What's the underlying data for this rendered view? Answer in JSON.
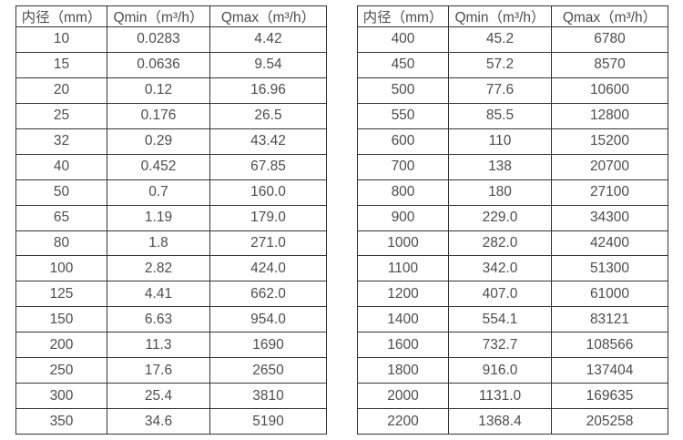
{
  "page": {
    "background": "#ffffff",
    "border_color": "#333333",
    "text_color": "#4d4d4d"
  },
  "tables": [
    {
      "name": "flow-spec-table-small-diameters",
      "headers": [
        "内径（mm）",
        "Qmin（m³/h）",
        "Qmax（m³/h）"
      ],
      "rows": [
        [
          "10",
          "0.0283",
          "4.42"
        ],
        [
          "15",
          "0.0636",
          "9.54"
        ],
        [
          "20",
          "0.12",
          "16.96"
        ],
        [
          "25",
          "0.176",
          "26.5"
        ],
        [
          "32",
          "0.29",
          "43.42"
        ],
        [
          "40",
          "0.452",
          "67.85"
        ],
        [
          "50",
          "0.7",
          "160.0"
        ],
        [
          "65",
          "1.19",
          "179.0"
        ],
        [
          "80",
          "1.8",
          "271.0"
        ],
        [
          "100",
          "2.82",
          "424.0"
        ],
        [
          "125",
          "4.41",
          "662.0"
        ],
        [
          "150",
          "6.63",
          "954.0"
        ],
        [
          "200",
          "11.3",
          "1690"
        ],
        [
          "250",
          "17.6",
          "2650"
        ],
        [
          "300",
          "25.4",
          "3810"
        ],
        [
          "350",
          "34.6",
          "5190"
        ]
      ]
    },
    {
      "name": "flow-spec-table-large-diameters",
      "headers": [
        "内径（mm）",
        "Qmin（m³/h）",
        "Qmax（m³/h）"
      ],
      "rows": [
        [
          "400",
          "45.2",
          "6780"
        ],
        [
          "450",
          "57.2",
          "8570"
        ],
        [
          "500",
          "77.6",
          "10600"
        ],
        [
          "550",
          "85.5",
          "12800"
        ],
        [
          "600",
          "110",
          "15200"
        ],
        [
          "700",
          "138",
          "20700"
        ],
        [
          "800",
          "180",
          "27100"
        ],
        [
          "900",
          "229.0",
          "34300"
        ],
        [
          "1000",
          "282.0",
          "42400"
        ],
        [
          "1100",
          "342.0",
          "51300"
        ],
        [
          "1200",
          "407.0",
          "61000"
        ],
        [
          "1400",
          "554.1",
          "83121"
        ],
        [
          "1600",
          "732.7",
          "108566"
        ],
        [
          "1800",
          "916.0",
          "137404"
        ],
        [
          "2000",
          "1131.0",
          "169635"
        ],
        [
          "2200",
          "1368.4",
          "205258"
        ]
      ]
    }
  ]
}
